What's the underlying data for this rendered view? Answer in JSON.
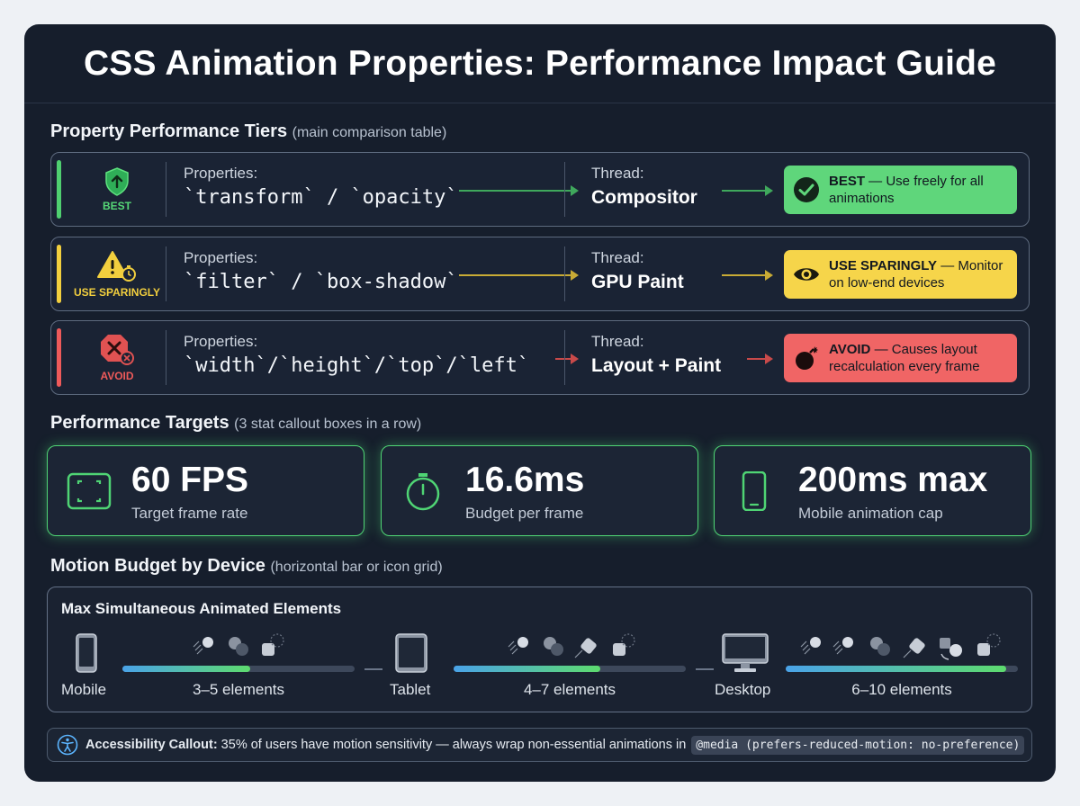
{
  "title": "CSS Animation Properties: Performance Impact Guide",
  "sections": {
    "tiers_heading": "Property Performance Tiers",
    "tiers_note": "(main comparison table)",
    "targets_heading": "Performance Targets",
    "targets_note": "(3 stat callout boxes in a row)",
    "budget_heading": "Motion Budget by Device",
    "budget_note": "(horizontal bar or icon grid)"
  },
  "tiers": [
    {
      "badge": "BEST",
      "props_label": "Properties:",
      "props": "`transform` / `opacity`",
      "thread_label": "Thread:",
      "thread": "Compositor",
      "verdict_strong": "BEST",
      "verdict_rest": " — Use freely for all animations",
      "color": "#4fcf70",
      "verdict_bg": "#5fd67b",
      "icon": "shield-arrow-up-icon",
      "verdict_icon": "check-circle-icon"
    },
    {
      "badge": "USE SPARINGLY",
      "props_label": "Properties:",
      "props": "`filter` / `box-shadow`",
      "thread_label": "Thread:",
      "thread": "GPU Paint",
      "verdict_strong": "USE SPARINGLY",
      "verdict_rest": " — Monitor on low-end devices",
      "color": "#f2cf3e",
      "verdict_bg": "#f6d54a",
      "icon": "warning-stopwatch-icon",
      "verdict_icon": "eye-icon"
    },
    {
      "badge": "AVOID",
      "props_label": "Properties:",
      "props": "`width`/`height`/`top`/`left`",
      "thread_label": "Thread:",
      "thread": "Layout + Paint",
      "verdict_strong": "AVOID",
      "verdict_rest": " — Causes layout recalculation every frame",
      "color": "#ee5a5a",
      "verdict_bg": "#f06565",
      "icon": "octagon-x-icon",
      "verdict_icon": "bomb-icon"
    }
  ],
  "targets": [
    {
      "value": "60 FPS",
      "label": "Target frame rate",
      "icon": "frame-icon"
    },
    {
      "value": "16.6ms",
      "label": "Budget per frame",
      "icon": "stopwatch-icon"
    },
    {
      "value": "200ms max",
      "label": "Mobile animation cap",
      "icon": "mobile-icon"
    }
  ],
  "budget": {
    "title": "Max Simultaneous Animated Elements",
    "devices": [
      {
        "name": "Mobile",
        "elements": "3–5 elements",
        "fill": 0.55,
        "icon": "phone-icon"
      },
      {
        "name": "Tablet",
        "elements": "4–7 elements",
        "fill": 0.63,
        "icon": "tablet-icon"
      },
      {
        "name": "Desktop",
        "elements": "6–10 elements",
        "fill": 0.95,
        "icon": "desktop-icon"
      }
    ]
  },
  "accessibility": {
    "label": "Accessibility Callout:",
    "text": " 35% of users have motion sensitivity — always wrap non-essential animations in",
    "code": "@media (prefers-reduced-motion: no-preference)",
    "icon": "accessibility-icon"
  }
}
